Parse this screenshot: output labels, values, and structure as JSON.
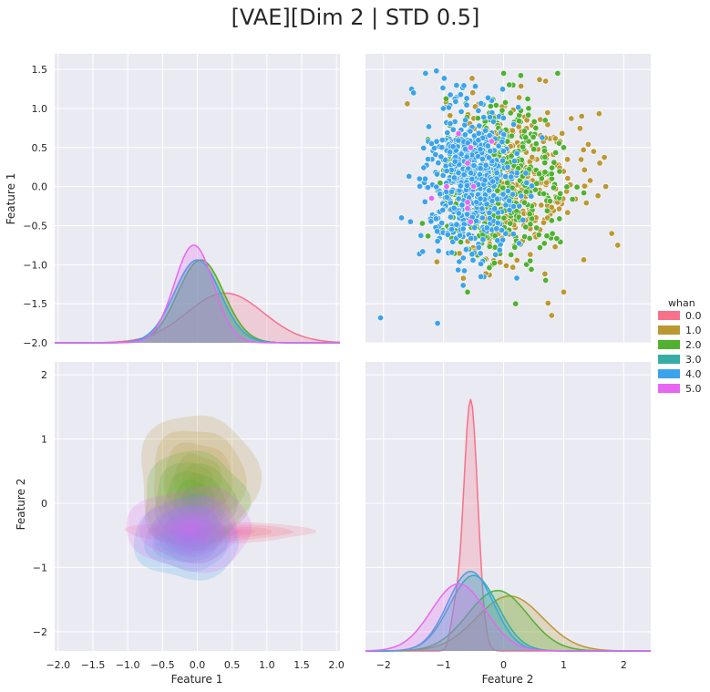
{
  "title": "[VAE][Dim 2 | STD 0.5]",
  "legend": {
    "title": "whan",
    "placement": "right"
  },
  "colors": {
    "panel_bg": "#eaeaf2",
    "grid": "#ffffff",
    "text": "#262626"
  },
  "chart_data": {
    "type": "pairplot",
    "title": "[VAE][Dim 2 | STD 0.5]",
    "variables": [
      "Feature 1",
      "Feature 2"
    ],
    "hue": "whan",
    "grid": true,
    "series": [
      {
        "name": "0.0",
        "color": "#f77189",
        "f1": {
          "mean": 0.4,
          "std": 0.55
        },
        "f2": {
          "mean": -0.55,
          "std": 0.12,
          "secondary_bump": {
            "x": -0.82,
            "height": 0.32
          }
        },
        "kde2d": {
          "cx": 0.3,
          "cy": -0.45,
          "rx": 1.35,
          "ry": 0.16
        },
        "scatter": []
      },
      {
        "name": "1.0",
        "color": "#bb9832",
        "f1": {
          "mean": 0.05,
          "std": 0.33
        },
        "f2": {
          "mean": 0.1,
          "std": 0.55
        },
        "kde2d": {
          "cx": 0.0,
          "cy": 0.35,
          "rx": 0.85,
          "ry": 1.05
        },
        "scatter": [
          [
            1.5,
            0.45
          ],
          [
            1.7,
            0.0
          ],
          [
            1.8,
            -0.6
          ],
          [
            1.9,
            -0.75
          ],
          [
            1.3,
            0.9
          ],
          [
            0.7,
            1.35
          ],
          [
            1.0,
            -1.35
          ],
          [
            0.8,
            -1.65
          ],
          [
            1.6,
            0.3
          ]
        ]
      },
      {
        "name": "2.0",
        "color": "#50b131",
        "f1": {
          "mean": 0.05,
          "std": 0.33
        },
        "f2": {
          "mean": -0.1,
          "std": 0.5
        },
        "kde2d": {
          "cx": -0.05,
          "cy": 0.05,
          "rx": 0.75,
          "ry": 0.75
        },
        "scatter": [
          [
            0.2,
            -1.5
          ],
          [
            0.0,
            1.45
          ],
          [
            0.9,
            1.45
          ],
          [
            -0.6,
            -1.35
          ],
          [
            1.0,
            0.5
          ],
          [
            0.7,
            -1.2
          ]
        ]
      },
      {
        "name": "3.0",
        "color": "#36ada4",
        "f1": {
          "mean": 0.0,
          "std": 0.33
        },
        "f2": {
          "mean": -0.5,
          "std": 0.4
        },
        "kde2d": {
          "cx": -0.1,
          "cy": -0.5,
          "rx": 0.55,
          "ry": 0.45
        },
        "scatter": []
      },
      {
        "name": "4.0",
        "color": "#3ba3ec",
        "f1": {
          "mean": 0.0,
          "std": 0.33
        },
        "f2": {
          "mean": -0.55,
          "std": 0.38
        },
        "kde2d": {
          "cx": -0.15,
          "cy": -0.55,
          "rx": 0.75,
          "ry": 0.65
        },
        "scatter": [
          [
            -2.05,
            -1.68
          ],
          [
            -1.1,
            -1.75
          ],
          [
            -1.5,
            1.2
          ],
          [
            -1.4,
            0.1
          ],
          [
            -1.7,
            -0.4
          ],
          [
            -1.3,
            1.45
          ],
          [
            -1.55,
            -0.45
          ],
          [
            -1.2,
            0.55
          ],
          [
            -1.1,
            -0.7
          ]
        ]
      },
      {
        "name": "5.0",
        "color": "#e866f4",
        "f1": {
          "mean": -0.05,
          "std": 0.28
        },
        "f2": {
          "mean": -0.75,
          "std": 0.45
        },
        "kde2d": {
          "cx": -0.1,
          "cy": -0.4,
          "rx": 0.9,
          "ry": 0.65
        },
        "scatter": [
          [
            -0.2,
            0.58
          ],
          [
            -0.75,
            0.68
          ],
          [
            -0.55,
            0.5
          ],
          [
            -0.6,
            0.3
          ],
          [
            -0.5,
            0.0
          ],
          [
            -0.95,
            0.0
          ],
          [
            -0.6,
            -0.2
          ],
          [
            -0.6,
            -0.28
          ],
          [
            -0.55,
            -0.45
          ],
          [
            -1.2,
            -0.15
          ]
        ]
      }
    ],
    "panels": [
      {
        "row": 0,
        "col": 0,
        "kind": "kde",
        "variable": "Feature 1",
        "ylabel": "Feature 1",
        "xlim": [
          -2.05,
          2.05
        ],
        "ylim": [
          -2.0,
          1.7
        ],
        "yticks": [
          -2.0,
          -1.5,
          -1.0,
          -0.5,
          0.0,
          0.5,
          1.0,
          1.5
        ],
        "ytick_labels": [
          "−2.0",
          "−1.5",
          "−1.0",
          "−0.5",
          "0.0",
          "0.5",
          "1.0",
          "1.5"
        ]
      },
      {
        "row": 0,
        "col": 1,
        "kind": "scatter",
        "x": "Feature 2",
        "y": "Feature 1",
        "xlim": [
          -2.3,
          2.45
        ],
        "ylim": [
          -2.0,
          1.7
        ]
      },
      {
        "row": 1,
        "col": 0,
        "kind": "kde2d",
        "x": "Feature 1",
        "y": "Feature 2",
        "xlabel": "Feature 1",
        "ylabel": "Feature 2",
        "xlim": [
          -2.05,
          2.05
        ],
        "ylim": [
          -2.3,
          2.2
        ],
        "xticks": [
          -2.0,
          -1.5,
          -1.0,
          -0.5,
          0.0,
          0.5,
          1.0,
          1.5,
          2.0
        ],
        "xtick_labels": [
          "−2.0",
          "−1.5",
          "−1.0",
          "−0.5",
          "0.0",
          "0.5",
          "1.0",
          "1.5",
          "2.0"
        ],
        "yticks": [
          -2,
          -1,
          0,
          1,
          2
        ],
        "ytick_labels": [
          "−2",
          "−1",
          "0",
          "1",
          "2"
        ]
      },
      {
        "row": 1,
        "col": 1,
        "kind": "kde",
        "variable": "Feature 2",
        "xlabel": "Feature 2",
        "xlim": [
          -2.3,
          2.45
        ],
        "ylim": [
          -2.3,
          2.2
        ],
        "xticks": [
          -2,
          -1,
          0,
          1,
          2
        ],
        "xtick_labels": [
          "−2",
          "−1",
          "0",
          "1",
          "2"
        ]
      }
    ]
  }
}
